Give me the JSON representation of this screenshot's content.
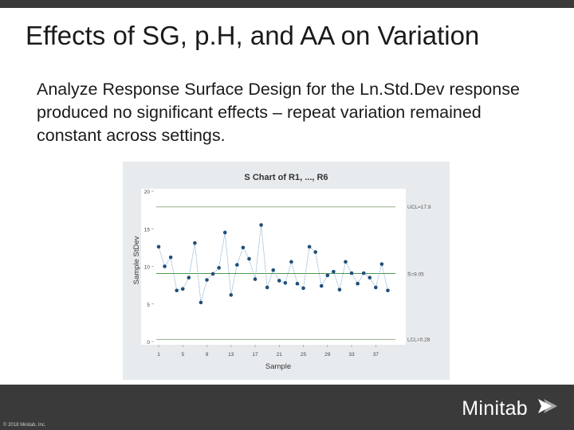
{
  "slide": {
    "title": "Effects of SG, p.H, and AA on Variation",
    "body": "Analyze Response Surface Design for the Ln.Std.Dev response produced no significant effects – repeat variation remained constant across settings."
  },
  "footer": {
    "brand": "Minitab",
    "copyright": "© 2018 Minitab, Inc."
  },
  "colors": {
    "bars": "#3a3a3a",
    "points": "#1f4e79",
    "center_line": "#4a9a4a",
    "limit_line": "#8aa07a",
    "plot_bg": "#ffffff",
    "frame_bg": "#e8ebee"
  },
  "chart_data": {
    "type": "line",
    "title": "S Chart of R1, ..., R6",
    "xlabel": "Sample",
    "ylabel": "Sample StDev",
    "xlim": [
      1,
      40
    ],
    "ylim": [
      0,
      20
    ],
    "x_ticks": [
      1,
      5,
      9,
      13,
      17,
      21,
      25,
      29,
      33,
      37
    ],
    "y_ticks": [
      0,
      5,
      10,
      15,
      20
    ],
    "ucl": 17.9,
    "center": 9.05,
    "lcl": 0.28,
    "ucl_label": "UCL=17.9",
    "center_label": "S̄=9.05",
    "lcl_label": "LCL=0.28",
    "grid": false,
    "values": [
      12.6,
      10.0,
      11.2,
      6.8,
      7.0,
      8.5,
      13.1,
      5.2,
      8.2,
      9.0,
      9.8,
      14.5,
      6.2,
      10.2,
      12.5,
      11.0,
      8.3,
      15.5,
      7.2,
      9.5,
      8.1,
      7.8,
      10.6,
      7.7,
      7.1,
      12.6,
      11.9,
      7.4,
      8.8,
      9.3,
      6.9,
      10.6,
      9.1,
      7.7,
      9.1,
      8.5,
      7.2,
      10.3,
      6.8
    ]
  }
}
